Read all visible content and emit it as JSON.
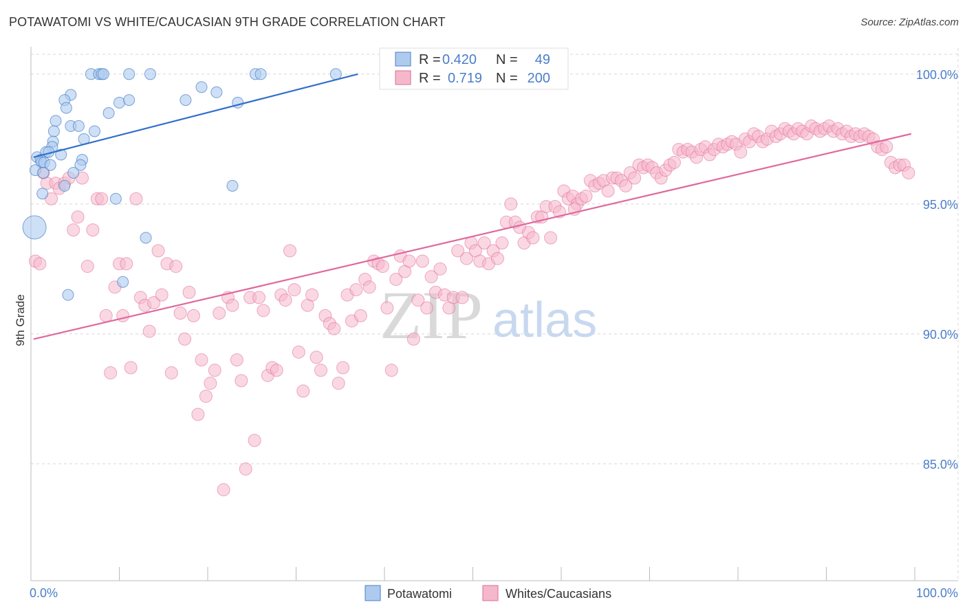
{
  "title": "POTAWATOMI VS WHITE/CAUCASIAN 9TH GRADE CORRELATION CHART",
  "source": "Source: ZipAtlas.com",
  "watermark": {
    "zip": "ZIP",
    "atlas": "atlas"
  },
  "colors": {
    "blue": "#4a7ec9",
    "blue_fill": "#aecbef",
    "blue_line": "#2f6fcc",
    "pink_fill": "#f5b8cb",
    "pink_line": "#e0689a",
    "grid": "#d8d8d8"
  },
  "legend": {
    "rows": [
      {
        "r_label": "R =",
        "r_value": "0.420",
        "n_label": "N =",
        "n_value": "49"
      },
      {
        "r_label": "R =",
        "r_value": "0.719",
        "n_label": "N =",
        "n_value": "200"
      }
    ]
  },
  "chart_data": {
    "type": "scatter",
    "xlabel": "",
    "ylabel": "9th Grade",
    "xlim": [
      0,
      100
    ],
    "ylim": [
      80.5,
      101.0
    ],
    "x_tick_labels": [
      "0.0%",
      "100.0%"
    ],
    "y_ticks": [
      85,
      90,
      95,
      100
    ],
    "y_tick_labels": [
      "85.0%",
      "90.0%",
      "95.0%",
      "100.0%"
    ],
    "grid": true,
    "legend_placement": "bottom-center",
    "series": [
      {
        "name": "Potawatomi",
        "color": "#aecbef",
        "line_color": "#2f6fcc",
        "trend": {
          "x": [
            0.3,
            37.0
          ],
          "y": [
            96.8,
            100.0
          ]
        },
        "points": [
          [
            6.8,
            100.0
          ],
          [
            7.7,
            100.0
          ],
          [
            8.0,
            100.0
          ],
          [
            8.2,
            100.0
          ],
          [
            11.1,
            100.0
          ],
          [
            25.4,
            100.0
          ],
          [
            34.5,
            100.0
          ],
          [
            43.0,
            100.0
          ],
          [
            4.5,
            99.2
          ],
          [
            19.3,
            99.5
          ],
          [
            21.0,
            99.3
          ],
          [
            3.8,
            99.0
          ],
          [
            10.0,
            98.9
          ],
          [
            11.1,
            99.0
          ],
          [
            17.5,
            99.0
          ],
          [
            23.4,
            98.9
          ],
          [
            4.0,
            98.7
          ],
          [
            8.8,
            98.5
          ],
          [
            2.8,
            98.2
          ],
          [
            4.5,
            98.0
          ],
          [
            5.4,
            98.0
          ],
          [
            2.6,
            97.8
          ],
          [
            7.2,
            97.8
          ],
          [
            6.0,
            97.5
          ],
          [
            2.5,
            97.4
          ],
          [
            2.4,
            97.2
          ],
          [
            1.7,
            97.0
          ],
          [
            2.0,
            97.0
          ],
          [
            3.4,
            96.9
          ],
          [
            0.7,
            96.8
          ],
          [
            1.1,
            96.7
          ],
          [
            1.2,
            96.6
          ],
          [
            5.8,
            96.7
          ],
          [
            1.5,
            96.6
          ],
          [
            2.2,
            96.5
          ],
          [
            5.6,
            96.5
          ],
          [
            0.5,
            96.3
          ],
          [
            4.8,
            96.2
          ],
          [
            1.4,
            96.2
          ],
          [
            3.8,
            95.7
          ],
          [
            22.8,
            95.7
          ],
          [
            1.3,
            95.4
          ],
          [
            9.6,
            95.2
          ],
          [
            0.4,
            94.1
          ],
          [
            13.0,
            93.7
          ],
          [
            10.4,
            92.0
          ],
          [
            4.2,
            91.5
          ],
          [
            13.5,
            100.0
          ],
          [
            26.0,
            100.0
          ]
        ]
      },
      {
        "name": "Whites/Caucasians",
        "color": "#f5b8cb",
        "line_color": "#e0689a",
        "trend": {
          "x": [
            0.3,
            99.6
          ],
          "y": [
            89.8,
            97.7
          ]
        },
        "points": [
          [
            0.5,
            92.8
          ],
          [
            1.0,
            92.7
          ],
          [
            1.4,
            96.2
          ],
          [
            1.8,
            95.8
          ],
          [
            2.3,
            95.2
          ],
          [
            2.8,
            95.8
          ],
          [
            3.2,
            95.6
          ],
          [
            3.8,
            95.8
          ],
          [
            4.3,
            96.0
          ],
          [
            4.8,
            94.0
          ],
          [
            5.3,
            94.5
          ],
          [
            5.8,
            96.0
          ],
          [
            6.4,
            92.6
          ],
          [
            7.0,
            94.0
          ],
          [
            7.5,
            95.2
          ],
          [
            8.0,
            95.2
          ],
          [
            8.5,
            90.7
          ],
          [
            9.0,
            88.5
          ],
          [
            9.5,
            91.8
          ],
          [
            10.0,
            92.7
          ],
          [
            10.4,
            90.7
          ],
          [
            10.8,
            92.7
          ],
          [
            11.3,
            88.7
          ],
          [
            11.9,
            95.2
          ],
          [
            12.4,
            91.4
          ],
          [
            12.9,
            91.1
          ],
          [
            13.4,
            90.1
          ],
          [
            13.9,
            91.2
          ],
          [
            14.4,
            93.2
          ],
          [
            14.8,
            91.5
          ],
          [
            15.4,
            92.7
          ],
          [
            15.9,
            88.5
          ],
          [
            16.4,
            92.6
          ],
          [
            16.9,
            90.8
          ],
          [
            17.4,
            89.8
          ],
          [
            17.9,
            91.6
          ],
          [
            18.4,
            90.7
          ],
          [
            18.9,
            86.9
          ],
          [
            19.3,
            89.0
          ],
          [
            19.8,
            87.6
          ],
          [
            20.3,
            88.1
          ],
          [
            20.8,
            88.6
          ],
          [
            21.3,
            90.8
          ],
          [
            21.8,
            84.0
          ],
          [
            22.3,
            91.4
          ],
          [
            22.8,
            91.1
          ],
          [
            23.3,
            89.0
          ],
          [
            23.8,
            88.2
          ],
          [
            24.3,
            84.8
          ],
          [
            24.8,
            91.4
          ],
          [
            25.3,
            85.9
          ],
          [
            25.8,
            91.4
          ],
          [
            26.3,
            90.9
          ],
          [
            26.8,
            88.4
          ],
          [
            27.3,
            88.7
          ],
          [
            27.8,
            88.6
          ],
          [
            28.3,
            91.5
          ],
          [
            28.8,
            91.3
          ],
          [
            29.3,
            93.2
          ],
          [
            29.8,
            91.7
          ],
          [
            30.3,
            89.3
          ],
          [
            30.8,
            87.8
          ],
          [
            31.3,
            91.1
          ],
          [
            31.8,
            91.5
          ],
          [
            32.3,
            89.1
          ],
          [
            32.8,
            88.6
          ],
          [
            33.3,
            90.7
          ],
          [
            33.8,
            90.4
          ],
          [
            34.3,
            90.2
          ],
          [
            34.8,
            88.1
          ],
          [
            35.3,
            88.7
          ],
          [
            35.8,
            91.5
          ],
          [
            36.3,
            90.5
          ],
          [
            36.8,
            91.7
          ],
          [
            37.3,
            90.7
          ],
          [
            37.8,
            92.1
          ],
          [
            38.3,
            91.8
          ],
          [
            38.8,
            92.8
          ],
          [
            39.3,
            92.7
          ],
          [
            39.8,
            92.6
          ],
          [
            40.3,
            91.0
          ],
          [
            40.8,
            88.6
          ],
          [
            41.3,
            92.1
          ],
          [
            41.8,
            93.0
          ],
          [
            42.3,
            92.4
          ],
          [
            42.8,
            92.8
          ],
          [
            43.3,
            89.8
          ],
          [
            43.8,
            91.3
          ],
          [
            44.3,
            92.8
          ],
          [
            44.8,
            91.0
          ],
          [
            45.3,
            92.2
          ],
          [
            45.8,
            91.6
          ],
          [
            46.3,
            92.5
          ],
          [
            46.8,
            91.5
          ],
          [
            47.3,
            91.0
          ],
          [
            47.8,
            91.4
          ],
          [
            48.3,
            93.2
          ],
          [
            48.8,
            91.4
          ],
          [
            49.3,
            92.9
          ],
          [
            49.8,
            93.5
          ],
          [
            50.3,
            93.2
          ],
          [
            50.8,
            92.8
          ],
          [
            51.3,
            93.5
          ],
          [
            51.8,
            92.7
          ],
          [
            52.3,
            93.2
          ],
          [
            52.8,
            92.9
          ],
          [
            53.3,
            93.5
          ],
          [
            53.8,
            94.3
          ],
          [
            54.3,
            95.0
          ],
          [
            54.8,
            94.3
          ],
          [
            55.3,
            94.1
          ],
          [
            55.8,
            93.5
          ],
          [
            56.3,
            93.9
          ],
          [
            56.8,
            93.7
          ],
          [
            57.3,
            94.5
          ],
          [
            57.8,
            94.5
          ],
          [
            58.3,
            94.9
          ],
          [
            58.8,
            93.7
          ],
          [
            59.3,
            94.9
          ],
          [
            59.8,
            94.7
          ],
          [
            60.3,
            95.5
          ],
          [
            60.8,
            95.2
          ],
          [
            61.3,
            95.3
          ],
          [
            61.8,
            95.0
          ],
          [
            62.3,
            95.2
          ],
          [
            62.8,
            95.3
          ],
          [
            63.3,
            95.9
          ],
          [
            63.8,
            95.7
          ],
          [
            64.3,
            95.8
          ],
          [
            64.8,
            95.9
          ],
          [
            65.3,
            95.5
          ],
          [
            65.8,
            96.0
          ],
          [
            66.3,
            96.0
          ],
          [
            66.8,
            95.9
          ],
          [
            67.3,
            95.7
          ],
          [
            67.8,
            96.2
          ],
          [
            68.3,
            96.0
          ],
          [
            68.8,
            96.5
          ],
          [
            69.3,
            96.4
          ],
          [
            69.8,
            96.5
          ],
          [
            70.3,
            96.4
          ],
          [
            70.8,
            96.2
          ],
          [
            71.3,
            96.0
          ],
          [
            71.8,
            96.3
          ],
          [
            72.3,
            96.5
          ],
          [
            72.8,
            96.6
          ],
          [
            73.3,
            97.1
          ],
          [
            73.8,
            97.0
          ],
          [
            74.3,
            97.1
          ],
          [
            74.8,
            97.0
          ],
          [
            75.3,
            96.8
          ],
          [
            75.8,
            97.1
          ],
          [
            76.3,
            97.2
          ],
          [
            76.8,
            96.9
          ],
          [
            77.3,
            97.1
          ],
          [
            77.8,
            97.3
          ],
          [
            78.3,
            97.2
          ],
          [
            78.8,
            97.3
          ],
          [
            79.3,
            97.4
          ],
          [
            79.8,
            97.3
          ],
          [
            80.3,
            97.0
          ],
          [
            80.8,
            97.5
          ],
          [
            81.3,
            97.4
          ],
          [
            81.8,
            97.7
          ],
          [
            82.3,
            97.6
          ],
          [
            82.8,
            97.4
          ],
          [
            83.3,
            97.5
          ],
          [
            83.8,
            97.8
          ],
          [
            84.3,
            97.6
          ],
          [
            84.8,
            97.7
          ],
          [
            85.3,
            97.9
          ],
          [
            85.8,
            97.8
          ],
          [
            86.3,
            97.7
          ],
          [
            86.8,
            97.9
          ],
          [
            87.3,
            97.8
          ],
          [
            87.8,
            97.7
          ],
          [
            88.3,
            98.0
          ],
          [
            88.8,
            97.9
          ],
          [
            89.3,
            97.8
          ],
          [
            89.8,
            97.9
          ],
          [
            90.3,
            98.0
          ],
          [
            90.8,
            97.8
          ],
          [
            91.3,
            97.9
          ],
          [
            91.8,
            97.7
          ],
          [
            92.3,
            97.8
          ],
          [
            92.8,
            97.6
          ],
          [
            93.3,
            97.7
          ],
          [
            93.8,
            97.6
          ],
          [
            94.3,
            97.7
          ],
          [
            94.8,
            97.6
          ],
          [
            95.3,
            97.5
          ],
          [
            95.8,
            97.2
          ],
          [
            96.3,
            97.1
          ],
          [
            96.8,
            97.2
          ],
          [
            97.3,
            96.6
          ],
          [
            97.8,
            96.4
          ],
          [
            98.3,
            96.5
          ],
          [
            98.8,
            96.5
          ],
          [
            99.3,
            96.2
          ],
          [
            61.5,
            94.8
          ]
        ]
      }
    ]
  }
}
